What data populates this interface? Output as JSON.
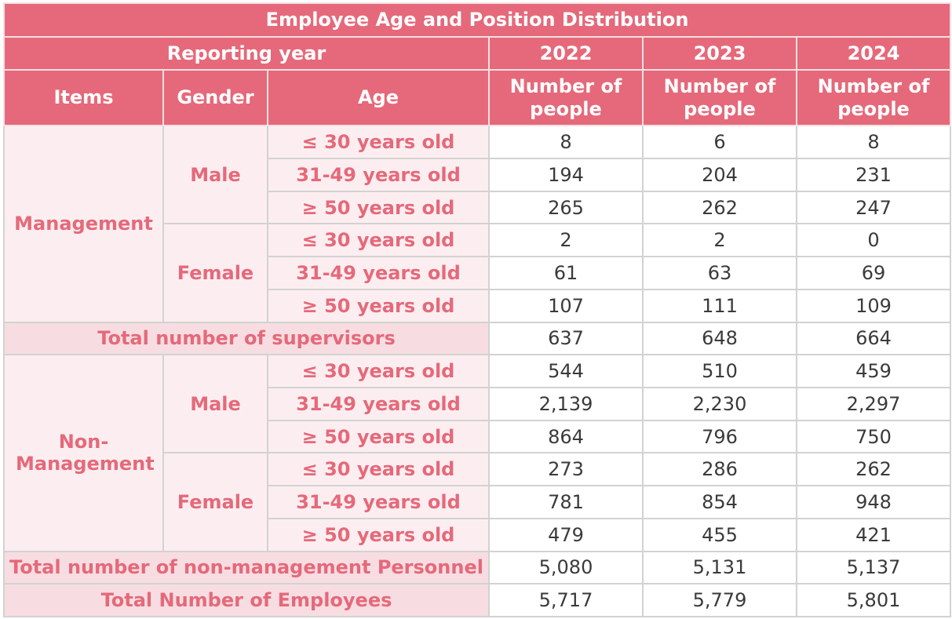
{
  "title": "Employee Age and Position Distribution",
  "header": {
    "reporting_year": "Reporting year",
    "years": [
      "2022",
      "2023",
      "2024"
    ],
    "items": "Items",
    "gender": "Gender",
    "age": "Age",
    "number_of_people": "Number of people"
  },
  "labels": {
    "management": "Management",
    "non_management": "Non-Management",
    "male": "Male",
    "female": "Female",
    "age_le30": "≤ 30 years old",
    "age_31_49": "31-49 years old",
    "age_ge50": "≥ 50 years old",
    "total_supervisors": "Total number of supervisors",
    "total_non_management": "Total number of non-management Personnel",
    "total_employees": "Total Number of Employees"
  },
  "rows": {
    "mgmt_male_le30": [
      "8",
      "6",
      "8"
    ],
    "mgmt_male_31_49": [
      "194",
      "204",
      "231"
    ],
    "mgmt_male_ge50": [
      "265",
      "262",
      "247"
    ],
    "mgmt_female_le30": [
      "2",
      "2",
      "0"
    ],
    "mgmt_female_31_49": [
      "61",
      "63",
      "69"
    ],
    "mgmt_female_ge50": [
      "107",
      "111",
      "109"
    ],
    "total_supervisors": [
      "637",
      "648",
      "664"
    ],
    "nonmgmt_male_le30": [
      "544",
      "510",
      "459"
    ],
    "nonmgmt_male_31_49": [
      "2,139",
      "2,230",
      "2,297"
    ],
    "nonmgmt_male_ge50": [
      "864",
      "796",
      "750"
    ],
    "nonmgmt_female_le30": [
      "273",
      "286",
      "262"
    ],
    "nonmgmt_female_31_49": [
      "781",
      "854",
      "948"
    ],
    "nonmgmt_female_ge50": [
      "479",
      "455",
      "421"
    ],
    "total_non_management": [
      "5,080",
      "5,131",
      "5,137"
    ],
    "total_employees": [
      "5,717",
      "5,779",
      "5,801"
    ]
  },
  "colors": {
    "header_bg": "#e5697a",
    "label_text": "#e5697a",
    "label_bg": "#fceef0",
    "total_bg": "#f7dde1"
  }
}
